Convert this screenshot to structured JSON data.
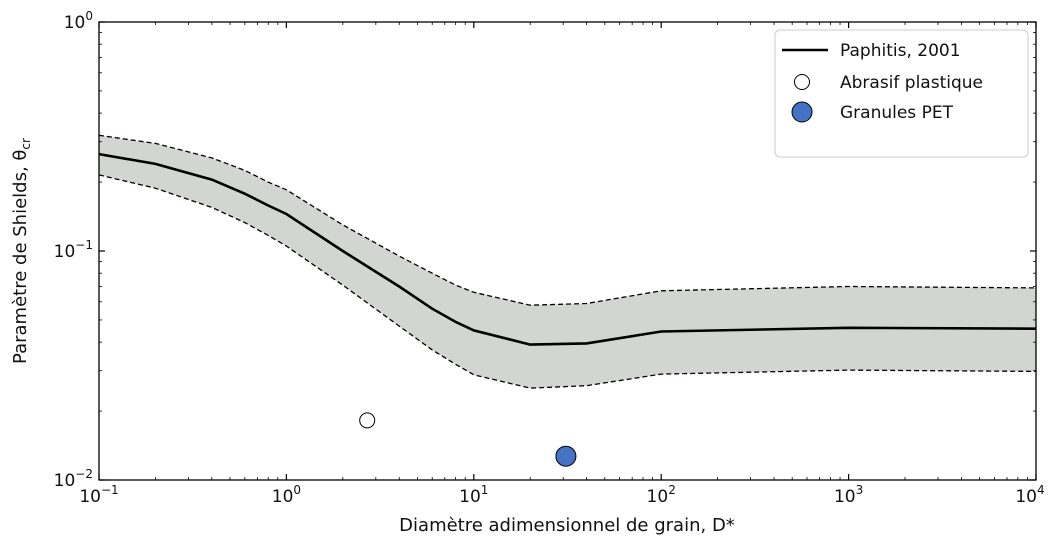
{
  "chart_data": {
    "type": "line",
    "xscale": "log",
    "yscale": "log",
    "xlim": [
      0.1,
      10000
    ],
    "ylim": [
      0.01,
      1
    ],
    "xlabel": "Diamètre adimensionnel de grain, D*",
    "ylabel": {
      "main": "Paramètre de Shields, θ",
      "sub": "cr"
    },
    "x_ticks": [
      {
        "value": 0.1,
        "base": "10",
        "exp": "−1"
      },
      {
        "value": 1,
        "base": "10",
        "exp": "0"
      },
      {
        "value": 10,
        "base": "10",
        "exp": "1"
      },
      {
        "value": 100,
        "base": "10",
        "exp": "2"
      },
      {
        "value": 1000,
        "base": "10",
        "exp": "3"
      },
      {
        "value": 10000,
        "base": "10",
        "exp": "4"
      }
    ],
    "y_ticks": [
      {
        "value": 0.01,
        "base": "10",
        "exp": "−2"
      },
      {
        "value": 0.1,
        "base": "10",
        "exp": "−1"
      },
      {
        "value": 1,
        "base": "10",
        "exp": "0"
      }
    ],
    "legend_position": "top-right",
    "grid": false,
    "series": [
      {
        "name": "Paphitis, 2001",
        "kind": "line",
        "color": "#000000",
        "x": [
          0.1,
          0.2,
          0.4,
          0.6,
          0.8,
          1,
          2,
          4,
          6,
          8,
          10,
          20,
          40,
          100,
          1000,
          10000
        ],
        "y": [
          0.265,
          0.24,
          0.205,
          0.178,
          0.158,
          0.145,
          0.1,
          0.07,
          0.056,
          0.049,
          0.045,
          0.039,
          0.0395,
          0.0445,
          0.0462,
          0.0458
        ]
      },
      {
        "name": "Abrasif plastique",
        "kind": "scatter",
        "marker_fill": "#ffffff",
        "x": [
          2.7
        ],
        "y": [
          0.0182
        ]
      },
      {
        "name": "Granules PET",
        "kind": "scatter",
        "marker_fill": "#4472c4",
        "x": [
          31
        ],
        "y": [
          0.0127
        ]
      }
    ],
    "envelope": {
      "fill": "#d3d5d2",
      "x": [
        0.1,
        0.2,
        0.4,
        0.6,
        0.8,
        1,
        2,
        4,
        6,
        8,
        10,
        20,
        40,
        100,
        1000,
        10000
      ],
      "upper": [
        0.32,
        0.295,
        0.255,
        0.225,
        0.2,
        0.185,
        0.13,
        0.095,
        0.08,
        0.071,
        0.066,
        0.058,
        0.059,
        0.067,
        0.07,
        0.069
      ],
      "lower": [
        0.215,
        0.188,
        0.155,
        0.133,
        0.117,
        0.105,
        0.071,
        0.047,
        0.037,
        0.032,
        0.0288,
        0.0252,
        0.0258,
        0.029,
        0.0302,
        0.0298
      ]
    }
  }
}
